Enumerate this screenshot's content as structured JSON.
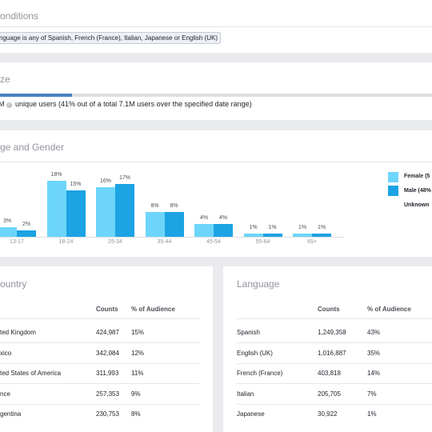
{
  "conditions": {
    "title": "onditions",
    "pill": "nguage is any of Spanish, French (France), Italian, Japanese or English (UK)"
  },
  "size": {
    "title": "ze",
    "fill_fraction": 0.41,
    "count_prefix": "M",
    "info_icon": "i",
    "text": "unique users (41% out of a total 7.1M users over the specified date range)"
  },
  "age_gender": {
    "title": "ge and Gender",
    "legend": [
      {
        "label": "Female (5",
        "color": "#6dd5fa",
        "icon": "female-swatch"
      },
      {
        "label": "Male (48%",
        "color": "#1ca3e3",
        "icon": "male-swatch"
      },
      {
        "label": "Unknown",
        "color": "#ffffff",
        "icon": "unknown-swatch"
      }
    ]
  },
  "chart_data": {
    "type": "bar",
    "categories": [
      "13-17",
      "18-24",
      "25-34",
      "35-44",
      "45-54",
      "55-64",
      "65+"
    ],
    "series": [
      {
        "name": "Female",
        "color": "#6dd5fa",
        "values": [
          3,
          18,
          16,
          8,
          4,
          1,
          1
        ],
        "labels": [
          "3%",
          "18%",
          "16%",
          "8%",
          "4%",
          "1%",
          "1%"
        ]
      },
      {
        "name": "Male",
        "color": "#1ca3e3",
        "values": [
          2,
          15,
          17,
          8,
          4,
          1,
          1
        ],
        "labels": [
          "2%",
          "15%",
          "17%",
          "8%",
          "4%",
          "1%",
          "1%"
        ]
      }
    ],
    "ylim": [
      0,
      18
    ]
  },
  "country": {
    "title": "ountry",
    "headers": {
      "counts": "Counts",
      "pct": "% of Audience"
    },
    "rows": [
      {
        "name": "ted Kingdom",
        "count": "424,987",
        "pct": "15%"
      },
      {
        "name": "xico",
        "count": "342,084",
        "pct": "12%"
      },
      {
        "name": "ted States of America",
        "count": "311,993",
        "pct": "11%"
      },
      {
        "name": "nce",
        "count": "257,353",
        "pct": "9%"
      },
      {
        "name": "gentina",
        "count": "230,753",
        "pct": "8%"
      }
    ]
  },
  "language": {
    "title": "Language",
    "headers": {
      "counts": "Counts",
      "pct": "% of Audience"
    },
    "rows": [
      {
        "name": "Spanish",
        "count": "1,249,358",
        "pct": "43%"
      },
      {
        "name": "English (UK)",
        "count": "1,016,887",
        "pct": "35%"
      },
      {
        "name": "French (France)",
        "count": "403,818",
        "pct": "14%"
      },
      {
        "name": "Italian",
        "count": "205,705",
        "pct": "7%"
      },
      {
        "name": "Japanese",
        "count": "30,922",
        "pct": "1%"
      }
    ]
  }
}
